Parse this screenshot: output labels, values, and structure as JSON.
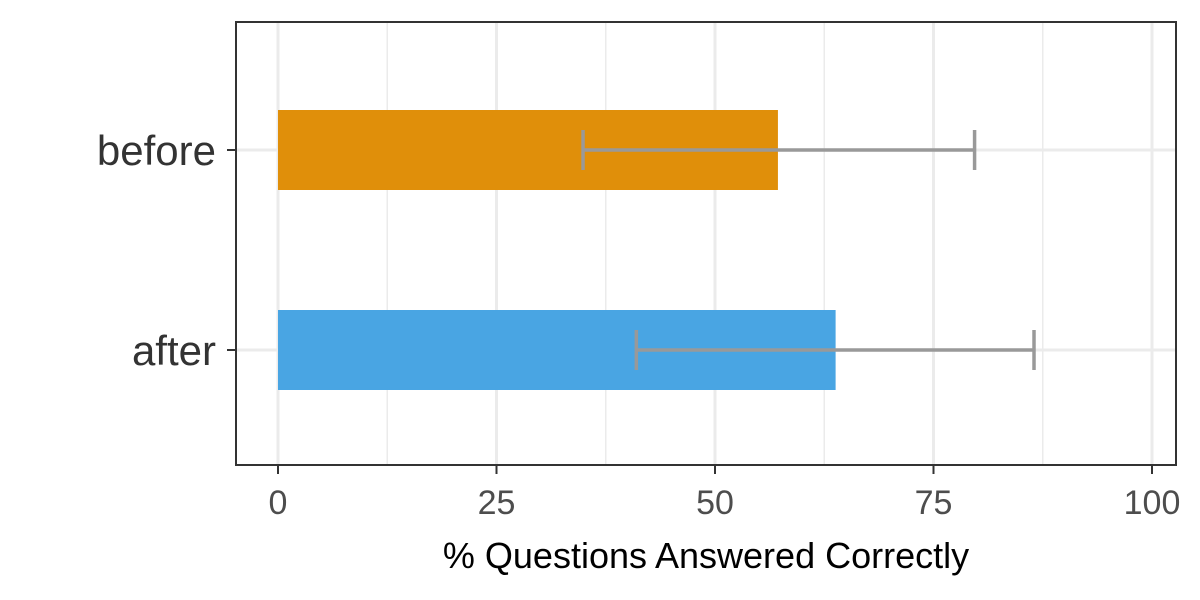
{
  "chart_data": {
    "type": "bar",
    "orientation": "horizontal",
    "title": "",
    "xlabel": "% Questions Answered Correctly",
    "ylabel": "",
    "xlim": [
      0,
      100
    ],
    "x_ticks": [
      0,
      25,
      50,
      75,
      100
    ],
    "x_tick_labels": [
      "0",
      "25",
      "50",
      "75",
      "100"
    ],
    "grid": true,
    "legend": "none",
    "categories": [
      "before",
      "after"
    ],
    "values": [
      57.2,
      63.8
    ],
    "error_low": [
      34.9,
      41.0
    ],
    "error_high": [
      79.7,
      86.5
    ],
    "colors": [
      "#E08F0A",
      "#49A5E3"
    ],
    "error_color": "#999999"
  }
}
